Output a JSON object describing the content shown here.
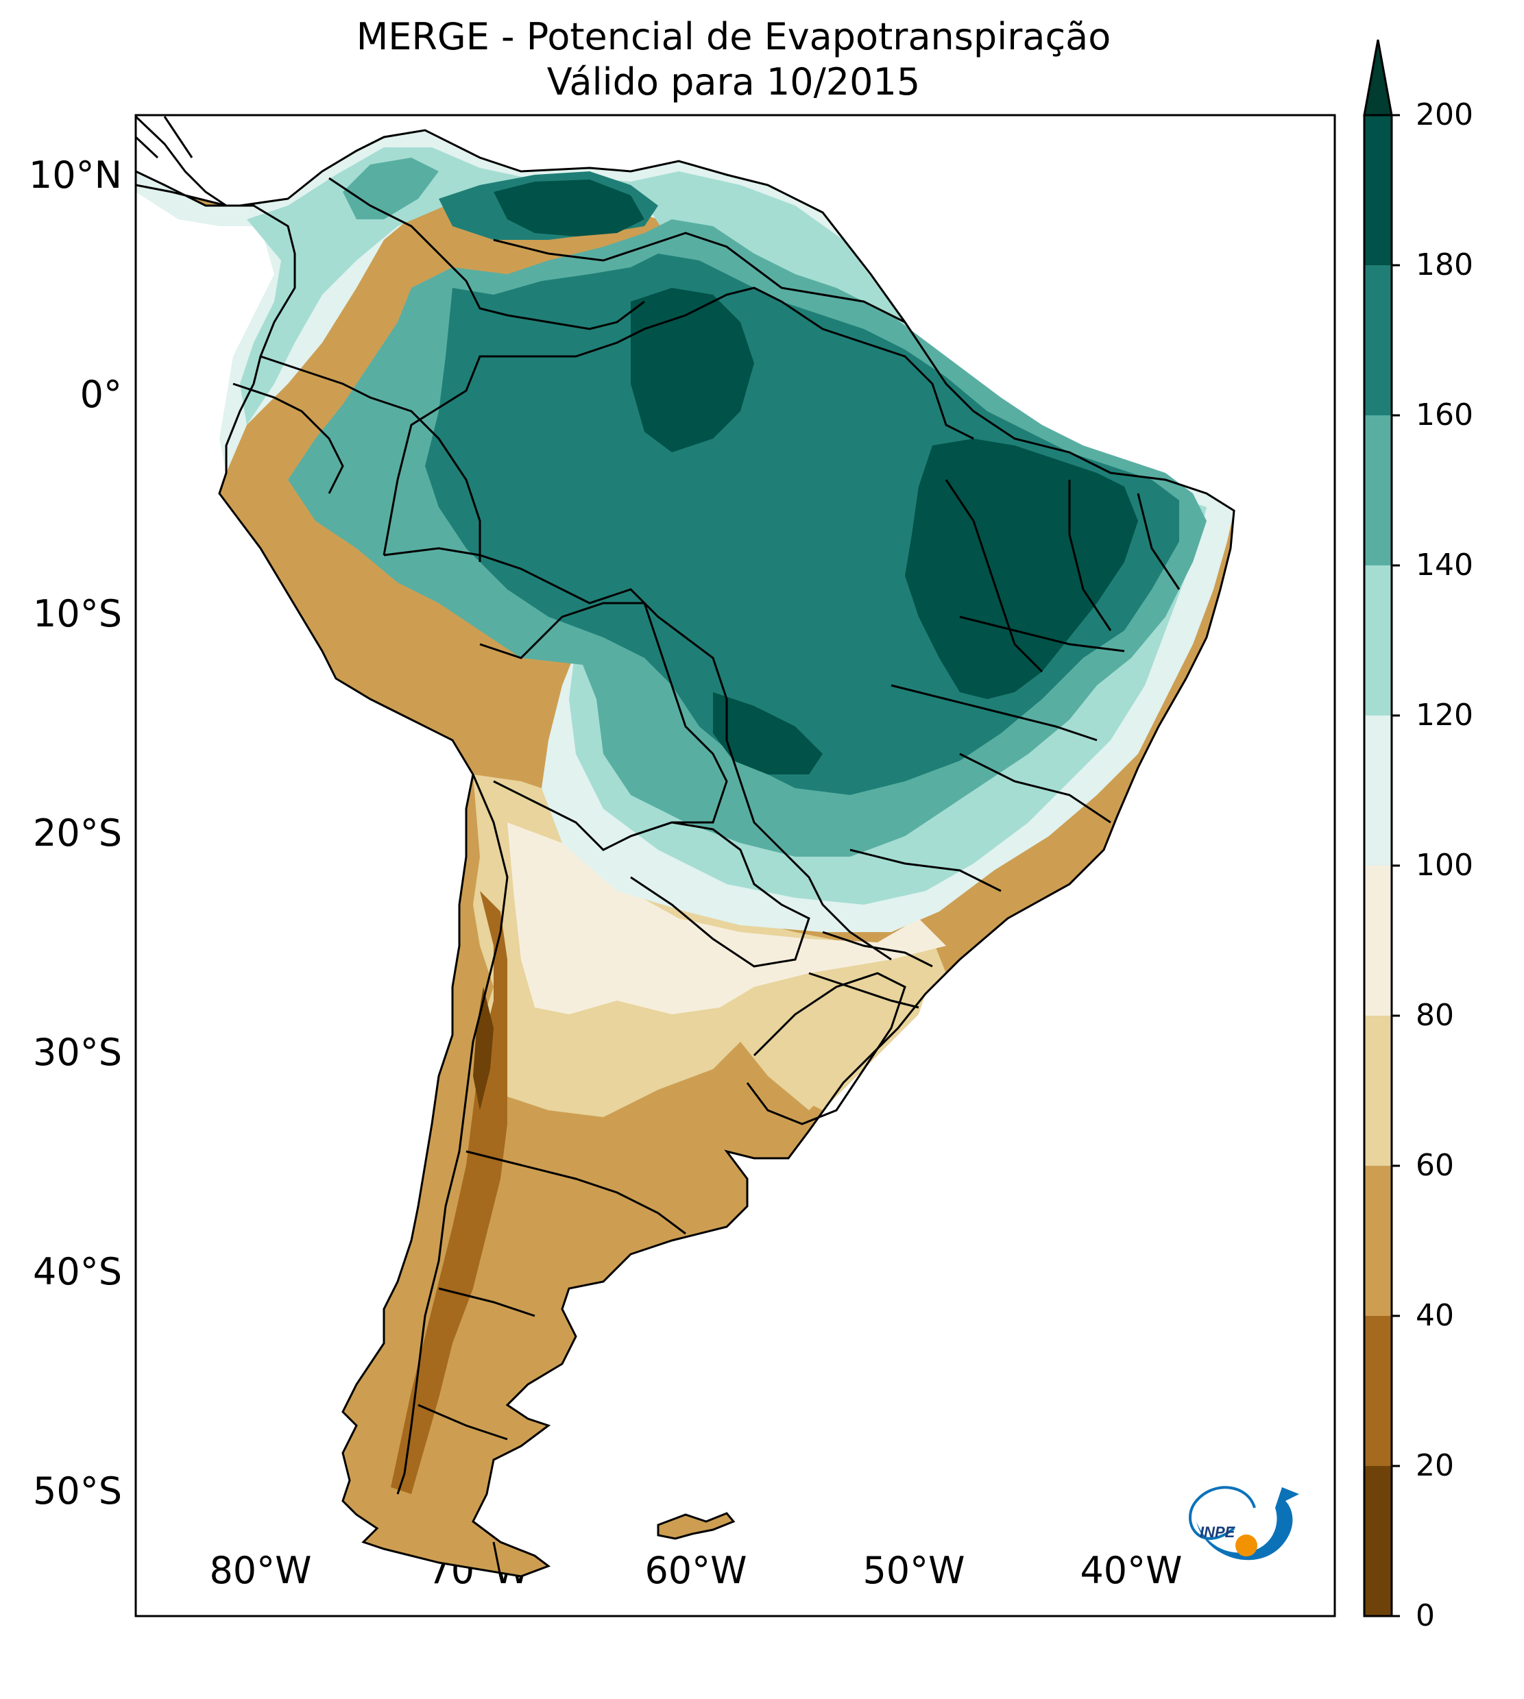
{
  "title": {
    "line1": "MERGE - Potencial de Evapotranspiração",
    "line2": "Válido para 10/2015"
  },
  "axes": {
    "lat_labels": [
      "10°N",
      "0°",
      "10°S",
      "20°S",
      "30°S",
      "40°S",
      "50°S"
    ],
    "lon_labels": [
      "80°W",
      "70°W",
      "60°W",
      "50°W",
      "40°W"
    ]
  },
  "colorbar": {
    "ticks": [
      "0",
      "20",
      "40",
      "60",
      "80",
      "100",
      "120",
      "140",
      "160",
      "180",
      "200"
    ],
    "colors": [
      "#6e4208",
      "#a56a1e",
      "#cd9e52",
      "#e8d49c",
      "#f6eedd",
      "#e1f2ef",
      "#a5ddd3",
      "#59aea2",
      "#1f7f76",
      "#015248"
    ],
    "extend_color": "#003c30"
  },
  "logo": {
    "text": "INPE",
    "ring_color": "#0b72b8",
    "dot_color": "#f39200"
  }
}
